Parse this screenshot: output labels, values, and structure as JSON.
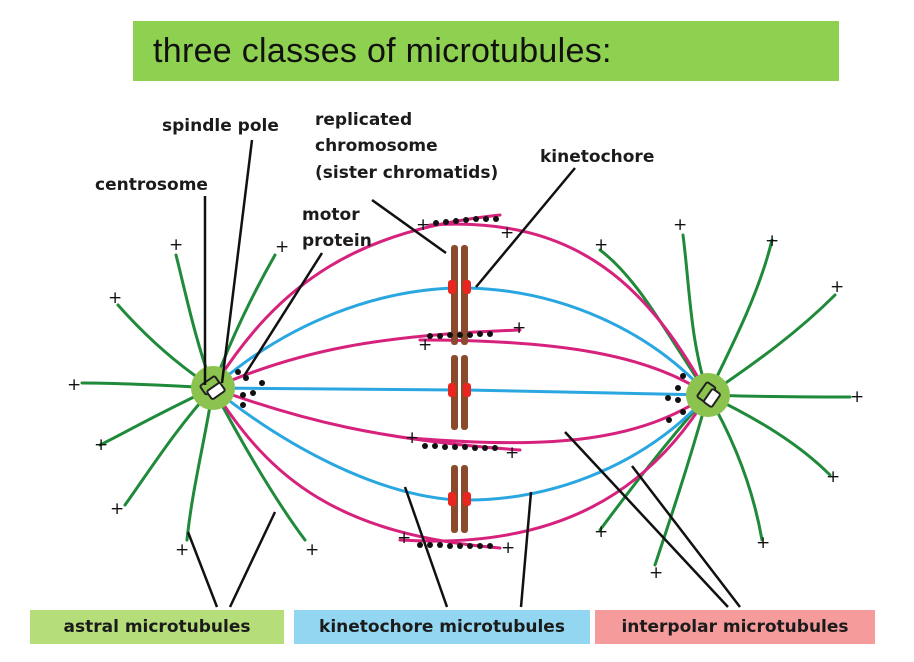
{
  "title": "three classes of microtubules:",
  "labels": {
    "spindle_pole": "spindle pole",
    "replicated_1": "replicated",
    "replicated_2": "chromosome",
    "replicated_3": "(sister chromatids)",
    "kinetochore": "kinetochore",
    "centrosome": "centrosome",
    "motor_1": "motor",
    "motor_2": "protein"
  },
  "plus_sign": "+",
  "legend": [
    {
      "label": "astral microtubules",
      "color": "#b5dd7a"
    },
    {
      "label": "kinetochore microtubules",
      "color": "#93d6f2"
    },
    {
      "label": "interpolar microtubules",
      "color": "#f59b9b"
    }
  ],
  "colors": {
    "astral": "#1f8a3a",
    "kinetochore": "#2aa7e0",
    "interpolar": "#d6227c",
    "chromatid": "#8b4a2b",
    "kinetochore_dot": "#e8261f",
    "centrosome_fill": "#8cc34f",
    "motor": "#111111"
  }
}
